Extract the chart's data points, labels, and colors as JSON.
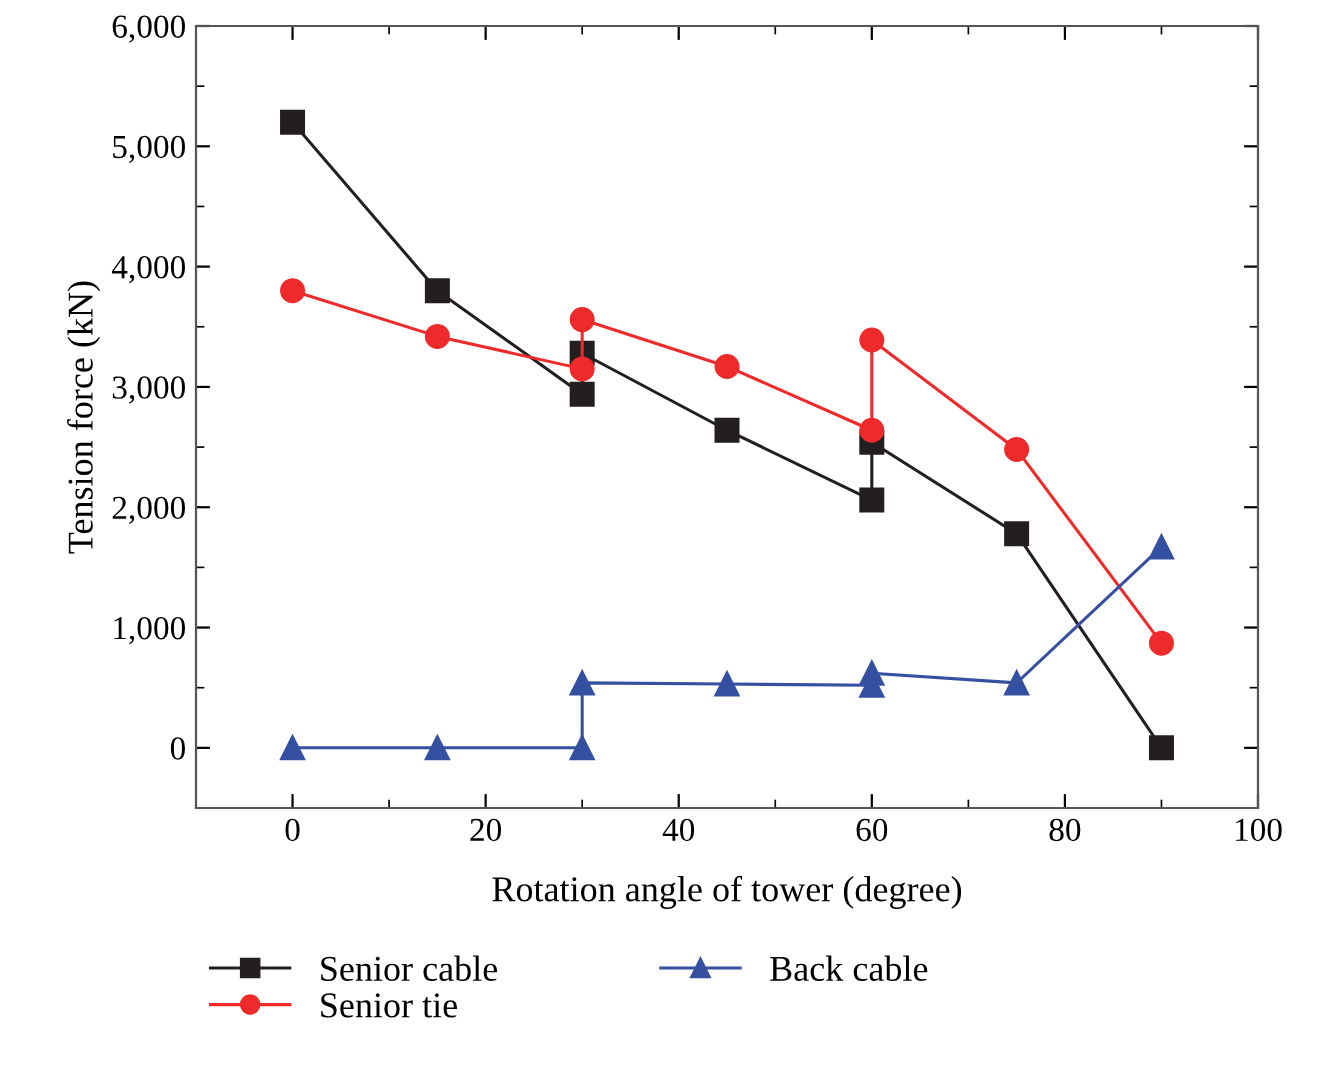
{
  "chart_data": {
    "type": "line",
    "xlabel": "Rotation angle of tower (degree)",
    "ylabel": "Tension force (kN)",
    "xlim": [
      -10,
      100
    ],
    "xticks": [
      0,
      20,
      40,
      60,
      80,
      100
    ],
    "ylim": [
      -500,
      6000
    ],
    "yticks": [
      0,
      {
        "value": 1000,
        "label": "1,000"
      },
      {
        "value": 2000,
        "label": "2,000"
      },
      {
        "value": 3000,
        "label": "3,000"
      },
      {
        "value": 4000,
        "label": "4,000"
      },
      {
        "value": 5000,
        "label": "5,000"
      },
      {
        "value": 6000,
        "label": "6,000"
      }
    ],
    "grid": false,
    "legend": "bottom",
    "line_style": "solid",
    "series": [
      {
        "name": "Senior cable",
        "color": "#231f20",
        "marker": "square",
        "x": [
          0,
          15,
          30,
          30,
          45,
          60,
          60,
          75,
          90
        ],
        "values": [
          5200,
          3800,
          2940,
          3280,
          2640,
          2060,
          2540,
          1780,
          0
        ]
      },
      {
        "name": "Senior tie",
        "color": "#ee2a2a",
        "marker": "circle",
        "x": [
          0,
          15,
          30,
          30,
          45,
          60,
          60,
          75,
          90
        ],
        "values": [
          3800,
          3420,
          3150,
          3560,
          3170,
          2640,
          3390,
          2480,
          870
        ]
      },
      {
        "name": "Back cable",
        "color": "#3550a0",
        "marker": "triangle",
        "x": [
          0,
          15,
          30,
          30,
          45,
          60,
          60,
          75,
          90
        ],
        "values": [
          0,
          0,
          0,
          540,
          530,
          520,
          620,
          540,
          1670
        ]
      }
    ]
  }
}
